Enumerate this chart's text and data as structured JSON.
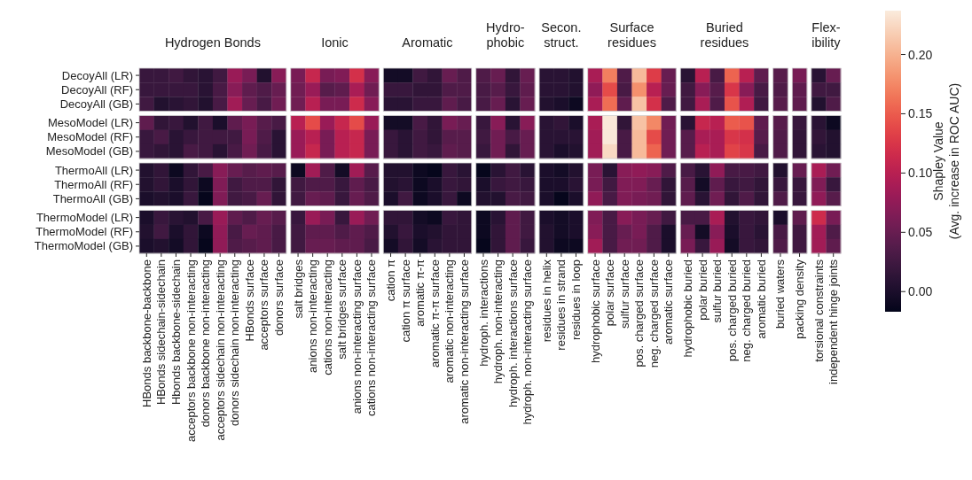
{
  "chart_data": {
    "type": "heatmap",
    "annotations": [
      "Hydrogen Bonds",
      "Ionic",
      "Aromatic",
      "Hydro-\nphobic",
      "Secon.\nstruct.",
      "Surface\nresidues",
      "Buried\nresidues",
      "Flex-\nibility"
    ],
    "categories": [
      "HBonds backbone-backbone",
      "HBonds sidechain-sidechain",
      "Hbonds backbone-sidechain",
      "acceptors backbone non-interacting",
      "donors backbone non-interacting",
      "acceptors sidechain non-interacting",
      "donors sidechain non-interacting",
      "HBonds surface",
      "acceptors surface",
      "donors surface",
      "salt bridges",
      "anions non-interacting",
      "cations non-interacting",
      "salt bridges surface",
      "anions non-interacting surface",
      "cations non-interacting surface",
      "cation π",
      "cation π surface",
      "aromatic π-π",
      "aromatic π-π surface",
      "aromatic non-interacting",
      "aromatic non-interacting surface",
      "hydroph. interactions",
      "hydroph. non-interacting",
      "hydroph. interactions surface",
      "hydroph. non-interacting surface",
      "residues in helix",
      "residues in strand",
      "residues in loop",
      "hydrophobic surface",
      "polar surface",
      "sulfur surface",
      "pos. charged surface",
      "neg. charged surface",
      "aromatic surface",
      "hydrophobic buried",
      "polar buried",
      "sulfur buried",
      "pos. charged buried",
      "neg. charged buried",
      "aromatic buried",
      "buried waters",
      "packing density",
      "torsional constraints",
      "independent hinge joints"
    ],
    "y_categories": [
      "DecoyAll (LR)",
      "DecoyAll (RF)",
      "DecoyAll (GB)",
      "MesoModel (LR)",
      "MesoModel (RF)",
      "MesoModel (GB)",
      "ThermoAll (LR)",
      "ThermoAll (RF)",
      "ThermoAll (GB)",
      "ThermoModel (LR)",
      "ThermoModel (RF)",
      "ThermoModel (GB)"
    ],
    "cells": [
      [
        0.02,
        0.02,
        0.025,
        0.015,
        0.01,
        0.025,
        0.08,
        0.06,
        0.005,
        0.07,
        0.06,
        0.11,
        0.06,
        0.065,
        0.12,
        0.07,
        -0.005,
        -0.005,
        0.025,
        0.015,
        0.05,
        0.035,
        0.035,
        0.05,
        0.015,
        0.05,
        0.01,
        0.01,
        0.005,
        0.09,
        0.17,
        0.035,
        0.205,
        0.13,
        0.05,
        0.01,
        0.1,
        0.03,
        0.155,
        0.1,
        0.045,
        0.04,
        0.06,
        0.01,
        0.05
      ],
      [
        0.02,
        0.02,
        0.02,
        0.02,
        0.01,
        0.03,
        0.07,
        0.045,
        0.035,
        0.05,
        0.055,
        0.08,
        0.04,
        0.045,
        0.09,
        0.055,
        0.02,
        0.02,
        0.015,
        0.015,
        0.035,
        0.035,
        0.03,
        0.04,
        0.02,
        0.045,
        0.01,
        0.01,
        0.005,
        0.075,
        0.14,
        0.03,
        0.18,
        0.1,
        0.05,
        0.025,
        0.07,
        0.04,
        0.125,
        0.07,
        0.03,
        0.035,
        0.045,
        0.025,
        0.025
      ],
      [
        0.025,
        0.005,
        0.01,
        0.015,
        0.005,
        0.03,
        0.085,
        0.05,
        0.03,
        0.055,
        0.055,
        0.1,
        0.06,
        0.06,
        0.115,
        0.07,
        0.01,
        0.01,
        0.02,
        0.02,
        0.045,
        0.03,
        0.03,
        0.05,
        0.01,
        0.05,
        0.005,
        0.0,
        -0.01,
        0.09,
        0.16,
        0.045,
        0.21,
        0.12,
        0.035,
        0.025,
        0.09,
        0.035,
        0.145,
        0.095,
        0.025,
        0.04,
        0.045,
        0.005,
        0.035
      ],
      [
        0.045,
        0.015,
        0.02,
        0.005,
        0.025,
        0.0,
        0.045,
        0.06,
        0.04,
        0.03,
        0.1,
        0.14,
        0.08,
        0.11,
        0.14,
        0.08,
        -0.005,
        -0.005,
        0.03,
        0.015,
        0.06,
        0.05,
        0.02,
        0.07,
        0.01,
        0.07,
        0.01,
        0.015,
        0.0,
        0.09,
        0.235,
        0.015,
        0.21,
        0.175,
        0.055,
        0.01,
        0.11,
        0.1,
        0.15,
        0.145,
        0.045,
        0.04,
        0.02,
        0.01,
        -0.01
      ],
      [
        0.02,
        0.03,
        0.01,
        0.02,
        0.025,
        0.025,
        0.025,
        0.06,
        0.035,
        0.01,
        0.08,
        0.1,
        0.06,
        0.1,
        0.11,
        0.06,
        0.02,
        0.01,
        0.025,
        0.015,
        0.04,
        0.04,
        0.025,
        0.055,
        0.03,
        0.05,
        0.01,
        0.01,
        0.01,
        0.085,
        0.235,
        0.03,
        0.205,
        0.14,
        0.055,
        0.04,
        0.09,
        0.09,
        0.125,
        0.12,
        0.04,
        0.035,
        0.015,
        0.015,
        0.005
      ],
      [
        0.02,
        0.015,
        0.01,
        0.03,
        0.025,
        0.01,
        0.03,
        0.055,
        0.03,
        0.01,
        0.08,
        0.11,
        0.06,
        0.1,
        0.11,
        0.06,
        0.02,
        0.01,
        0.025,
        0.02,
        0.045,
        0.04,
        0.02,
        0.055,
        0.015,
        0.05,
        0.01,
        0.0,
        0.005,
        0.085,
        0.225,
        0.03,
        0.205,
        0.155,
        0.055,
        0.04,
        0.1,
        0.09,
        0.135,
        0.125,
        0.03,
        0.035,
        0.015,
        0.01,
        0.005
      ],
      [
        0.005,
        0.015,
        -0.01,
        0.015,
        0.03,
        0.07,
        0.05,
        0.04,
        0.045,
        0.04,
        -0.01,
        0.085,
        0.035,
        -0.005,
        0.085,
        0.04,
        0.005,
        0.005,
        -0.01,
        -0.015,
        0.02,
        0.01,
        -0.015,
        0.01,
        0.025,
        0.01,
        0.0,
        -0.005,
        0.005,
        0.06,
        0.01,
        0.07,
        0.075,
        0.07,
        0.035,
        0.03,
        0.01,
        0.075,
        0.03,
        0.03,
        0.025,
        0.005,
        0.05,
        0.09,
        0.055
      ],
      [
        0.005,
        0.015,
        0.0,
        0.015,
        -0.01,
        0.065,
        0.025,
        0.035,
        0.035,
        0.015,
        0.025,
        0.035,
        0.035,
        0.02,
        0.045,
        0.03,
        0.005,
        0.01,
        -0.01,
        0.0,
        0.02,
        0.015,
        0.0,
        0.02,
        0.025,
        0.02,
        0.0,
        0.0,
        0.01,
        0.06,
        0.025,
        0.065,
        0.065,
        0.05,
        0.015,
        0.04,
        -0.005,
        0.045,
        0.02,
        0.025,
        0.015,
        0.02,
        0.02,
        0.065,
        0.02
      ],
      [
        0.0,
        0.005,
        0.0,
        0.02,
        -0.015,
        0.065,
        0.025,
        0.03,
        0.05,
        0.015,
        0.025,
        0.05,
        0.045,
        0.02,
        0.05,
        0.035,
        0.0,
        0.025,
        -0.01,
        0.0,
        0.02,
        -0.01,
        0.005,
        0.005,
        0.03,
        0.025,
        0.0,
        -0.015,
        0.0,
        0.075,
        0.03,
        0.065,
        0.06,
        0.055,
        0.015,
        0.045,
        0.01,
        0.055,
        0.015,
        0.035,
        0.015,
        0.035,
        0.02,
        0.075,
        0.04
      ],
      [
        0.0,
        0.02,
        0.01,
        0.005,
        0.03,
        0.08,
        0.045,
        0.035,
        0.05,
        0.04,
        0.02,
        0.08,
        0.06,
        0.02,
        0.08,
        0.055,
        0.015,
        0.015,
        -0.005,
        -0.01,
        0.02,
        0.015,
        -0.01,
        0.01,
        0.045,
        0.025,
        0.0,
        -0.005,
        0.0,
        0.065,
        0.03,
        0.07,
        0.06,
        0.05,
        0.025,
        0.03,
        0.03,
        0.09,
        0.005,
        0.02,
        0.015,
        0.0,
        0.045,
        0.115,
        0.06
      ],
      [
        0.005,
        0.025,
        0.0,
        0.015,
        -0.01,
        0.075,
        0.03,
        0.05,
        0.045,
        0.03,
        0.025,
        0.045,
        0.045,
        0.035,
        0.045,
        0.035,
        0.005,
        0.02,
        0.0,
        0.005,
        0.015,
        0.015,
        -0.01,
        0.015,
        0.045,
        0.025,
        0.005,
        -0.005,
        0.0,
        0.07,
        0.03,
        0.05,
        0.06,
        0.035,
        0.0,
        0.05,
        -0.005,
        0.07,
        0.0,
        0.02,
        0.01,
        0.03,
        0.025,
        0.085,
        0.035
      ],
      [
        0.0,
        0.005,
        -0.005,
        0.015,
        -0.015,
        0.075,
        0.035,
        0.04,
        0.045,
        0.03,
        0.025,
        0.05,
        0.05,
        0.045,
        0.045,
        0.03,
        -0.005,
        0.015,
        -0.005,
        0.01,
        0.015,
        0.015,
        -0.015,
        0.015,
        0.045,
        0.02,
        0.005,
        -0.01,
        -0.01,
        0.085,
        0.03,
        0.055,
        0.055,
        0.035,
        0.0,
        0.06,
        0.02,
        0.08,
        -0.005,
        0.02,
        0.015,
        0.035,
        0.025,
        0.085,
        0.045
      ]
    ],
    "clim": [
      -0.017,
      0.237
    ],
    "cticks": [
      {
        "value": 0,
        "label": "0.00"
      },
      {
        "value": 0.05,
        "label": "0.05"
      },
      {
        "value": 0.1,
        "label": "0.10"
      },
      {
        "value": 0.15,
        "label": "0.15"
      },
      {
        "value": 0.2,
        "label": "0.20"
      }
    ],
    "clabel": "Shapley Value\n(Avg. increase in ROC AUC)"
  }
}
